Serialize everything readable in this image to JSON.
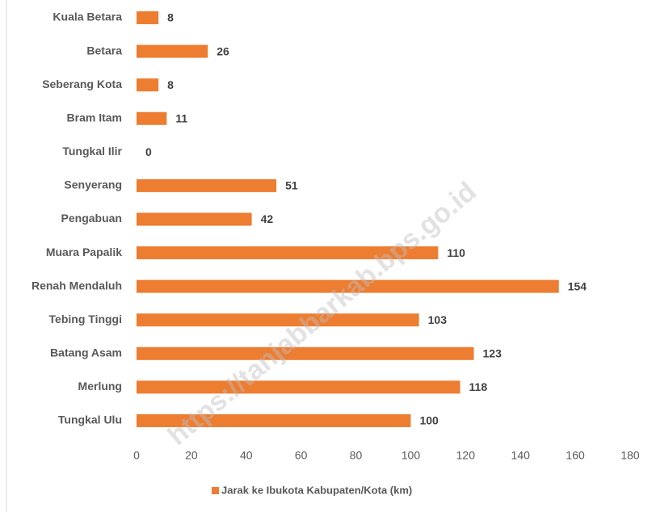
{
  "chart_data": {
    "type": "bar",
    "orientation": "horizontal",
    "categories": [
      "Kuala Betara",
      "Betara",
      "Seberang Kota",
      "Bram Itam",
      "Tungkal Ilir",
      "Senyerang",
      "Pengabuan",
      "Muara Papalik",
      "Renah Mendaluh",
      "Tebing Tinggi",
      "Batang Asam",
      "Merlung",
      "Tungkal Ulu"
    ],
    "series": [
      {
        "name": "Jarak ke Ibukota Kabupaten/Kota (km)",
        "color": "#ed7d31",
        "values": [
          8,
          26,
          8,
          11,
          0,
          51,
          42,
          110,
          154,
          103,
          123,
          118,
          100
        ]
      }
    ],
    "xlim": [
      0,
      180
    ],
    "xticks": [
      0,
      20,
      40,
      60,
      80,
      100,
      120,
      140,
      160,
      180
    ],
    "grid": false,
    "legend": "bottom",
    "watermark": "https://tanjabbarkab.bps.go.id"
  }
}
